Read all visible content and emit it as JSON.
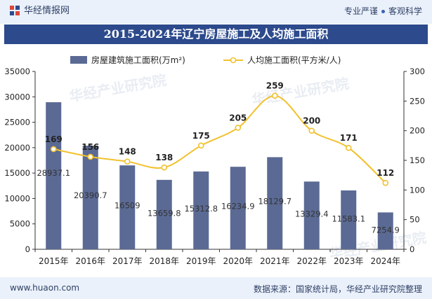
{
  "header": {
    "brand": "华经情报网",
    "tag1": "专业严谨",
    "tag2": "客观科学"
  },
  "footer": {
    "url": "www.huaon.com",
    "source": "数据来源：国家统计局，华经产业研究院整理"
  },
  "watermark": "华经产业研究院",
  "colors": {
    "bar": "#5b6a94",
    "line": "#f2c12e",
    "title_bg": "#2c4a8c",
    "band": "#eaf1fb"
  },
  "chart_data": {
    "type": "bar",
    "title": "2015-2024年辽宁房屋施工及人均施工面积",
    "categories": [
      "2015年",
      "2016年",
      "2017年",
      "2018年",
      "2019年",
      "2020年",
      "2021年",
      "2022年",
      "2023年",
      "2024年"
    ],
    "series": [
      {
        "name": "房屋建筑施工面积(万m²)",
        "type": "bar",
        "axis": "left",
        "values": [
          28937.1,
          20390.7,
          16509,
          13659.8,
          15312.8,
          16234.9,
          18129.7,
          13329.4,
          11583.1,
          7254.9
        ],
        "labels": [
          "28937.1",
          "20390.7",
          "16509",
          "13659.8",
          "15312.8",
          "16234.9",
          "18129.7",
          "13329.4",
          "11583.1",
          "7254.9"
        ]
      },
      {
        "name": "人均施工面积(平方米/人)",
        "type": "line",
        "axis": "right",
        "values": [
          169,
          156,
          148,
          138,
          175,
          205,
          259,
          200,
          171,
          112
        ],
        "labels": [
          "169",
          "156",
          "148",
          "138",
          "175",
          "205",
          "259",
          "200",
          "171",
          "112"
        ]
      }
    ],
    "left_axis": {
      "min": 0,
      "max": 35000,
      "ticks": [
        "0",
        "5000",
        "10000",
        "15000",
        "20000",
        "25000",
        "30000",
        "35000"
      ]
    },
    "right_axis": {
      "min": 0,
      "max": 300,
      "ticks": [
        "0",
        "50",
        "100",
        "150",
        "200",
        "250",
        "300"
      ]
    },
    "legend_position": "top-center",
    "grid": false
  }
}
